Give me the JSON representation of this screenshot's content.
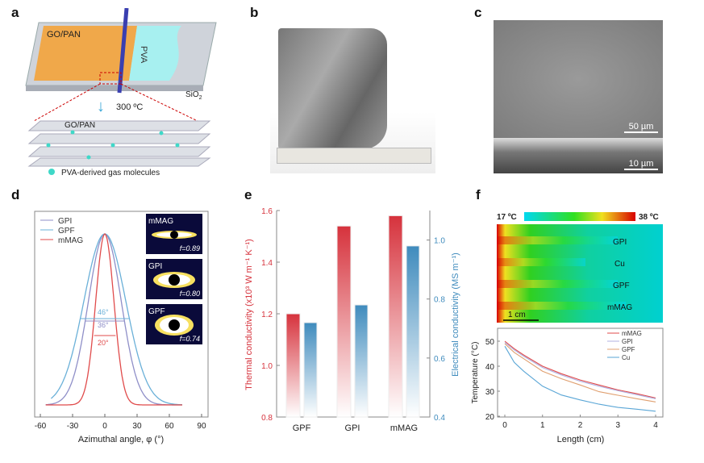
{
  "panels": {
    "a": "a",
    "b": "b",
    "c": "c",
    "d": "d",
    "e": "e",
    "f": "f"
  },
  "panel_a": {
    "top_label": "GO/PAN",
    "pva": "PVA",
    "substrate": "SiO",
    "substrate_sub": "2",
    "step": "300 ºC",
    "stack_label": "GO/PAN",
    "legend": "PVA-derived gas molecules"
  },
  "panel_c": {
    "scale_top": "50 µm",
    "scale_bottom": "10 µm"
  },
  "colors": {
    "red": "#d6323c",
    "blue": "#3f8bbd",
    "gpi": "#8f8fc8",
    "gpf": "#6ab0d8",
    "mmag": "#e04b4b",
    "cu": "#5aa6d6",
    "gpf_f": "#e0a070"
  },
  "chart_data": [
    {
      "type": "line",
      "panel": "d",
      "xlabel": "Azimuthal angle, φ (°)",
      "xlim": [
        -60,
        100
      ],
      "xticks": [
        "-60",
        "-30",
        "0",
        "30",
        "60",
        "90"
      ],
      "series": [
        {
          "name": "GPI",
          "fwhm_deg": 36
        },
        {
          "name": "GPF",
          "fwhm_deg": 46
        },
        {
          "name": "mMAG",
          "fwhm_deg": 20
        }
      ],
      "annotations": [
        "46°",
        "36°",
        "20°"
      ],
      "insets": [
        {
          "name": "mMAG",
          "f": "f=0.89"
        },
        {
          "name": "GPI",
          "f": "f=0.80"
        },
        {
          "name": "GPF",
          "f": "f=0.74"
        }
      ]
    },
    {
      "type": "bar",
      "panel": "e",
      "categories": [
        "GPF",
        "GPI",
        "mMAG"
      ],
      "series": [
        {
          "name": "Thermal conductivity",
          "axis": "left",
          "values": [
            1.2,
            1.54,
            1.58
          ]
        },
        {
          "name": "Electrical conductivity",
          "axis": "right",
          "values": [
            0.72,
            0.78,
            0.98
          ]
        }
      ],
      "ylabel": "Thermal conductivity (x10³ W m⁻¹ K⁻¹)",
      "ylabel_right": "Electrical conductivity (MS m⁻¹)",
      "ylim": [
        0.8,
        1.6
      ],
      "ylim_right": [
        0.4,
        1.1
      ],
      "yticks": [
        "0.8",
        "1.0",
        "1.2",
        "1.4",
        "1.6"
      ],
      "yticks_right": [
        "0.4",
        "0.6",
        "0.8",
        "1.0"
      ]
    },
    {
      "type": "line",
      "panel": "f",
      "xlabel": "Length (cm)",
      "ylabel": "Temperature (°C)",
      "xlim": [
        0,
        4
      ],
      "ylim": [
        20,
        55
      ],
      "xticks": [
        "0",
        "1",
        "2",
        "3",
        "4"
      ],
      "yticks": [
        "20",
        "30",
        "40",
        "50"
      ],
      "x": [
        0,
        0.25,
        0.5,
        1,
        1.5,
        2,
        2.5,
        3,
        3.5,
        4
      ],
      "series": [
        {
          "name": "mMAG",
          "values": [
            50,
            47,
            44.5,
            40,
            37,
            34.5,
            32.5,
            30.5,
            29,
            27.3
          ]
        },
        {
          "name": "GPI",
          "values": [
            49.5,
            46.5,
            44,
            39.5,
            36.5,
            34,
            32,
            30.2,
            28.6,
            27
          ]
        },
        {
          "name": "GPF",
          "values": [
            49,
            45.5,
            43,
            38,
            35,
            32.5,
            29.8,
            28.4,
            27,
            25.7
          ]
        },
        {
          "name": "Cu",
          "values": [
            48,
            41.5,
            38,
            32,
            28.5,
            26.5,
            24.8,
            23.5,
            22.8,
            22
          ]
        }
      ],
      "heatmap": {
        "min_label": "17 ºC",
        "max_label": "38 ºC",
        "rows": [
          "GPI",
          "Cu",
          "GPF",
          "mMAG"
        ],
        "scale": "1 cm"
      }
    }
  ]
}
